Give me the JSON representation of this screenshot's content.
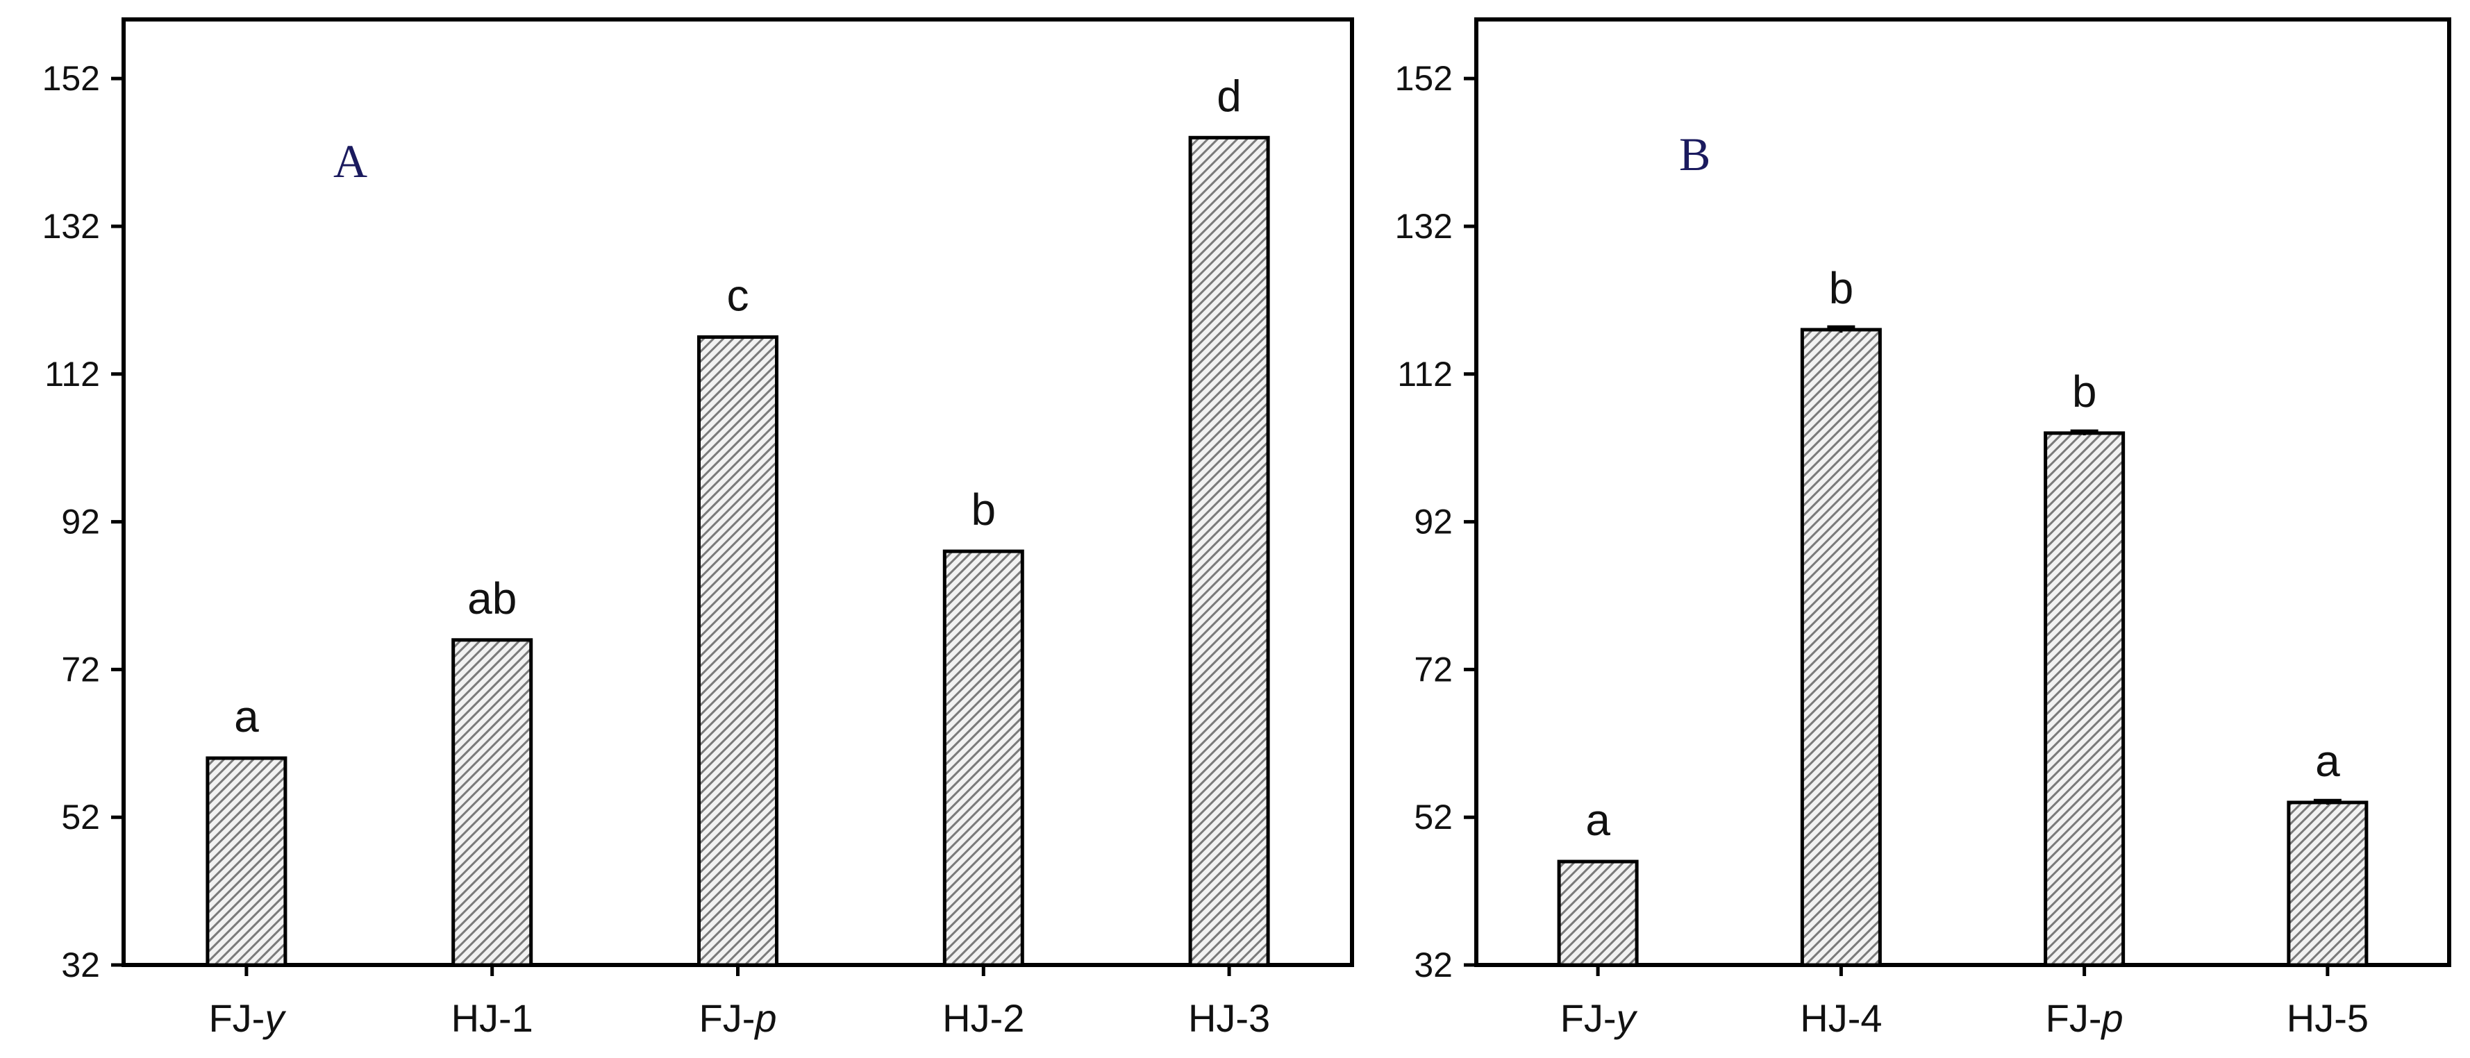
{
  "chart_data": [
    {
      "type": "bar",
      "panel_label": "A",
      "categories": [
        "FJ-y",
        "HJ-1",
        "FJ-p",
        "HJ-2",
        "HJ-3"
      ],
      "category_italic_suffix": [
        "y",
        "",
        "p",
        "",
        ""
      ],
      "values": [
        60,
        76,
        117,
        88,
        144
      ],
      "errors": [
        0,
        0,
        0,
        0,
        0
      ],
      "significance": [
        "a",
        "ab",
        "c",
        "b",
        "d"
      ],
      "ylim": [
        32,
        160
      ],
      "yticks": [
        "32",
        "52",
        "72",
        "92",
        "112",
        "132",
        "152"
      ],
      "xlabel": "",
      "ylabel": "",
      "grid": false,
      "bar_pattern": "diagonal-hatch",
      "bar_color": "#9a9a9a"
    },
    {
      "type": "bar",
      "panel_label": "B",
      "categories": [
        "FJ-y",
        "HJ-4",
        "FJ-p",
        "HJ-5"
      ],
      "category_italic_suffix": [
        "y",
        "",
        "p",
        ""
      ],
      "values": [
        46,
        118,
        104,
        54
      ],
      "errors": [
        0,
        0.4,
        0.3,
        0.3
      ],
      "significance": [
        "a",
        "b",
        "b",
        "a"
      ],
      "ylim": [
        32,
        160
      ],
      "yticks": [
        "32",
        "52",
        "72",
        "92",
        "112",
        "132",
        "152"
      ],
      "xlabel": "",
      "ylabel": "",
      "grid": false,
      "bar_pattern": "diagonal-hatch",
      "bar_color": "#9a9a9a"
    }
  ]
}
